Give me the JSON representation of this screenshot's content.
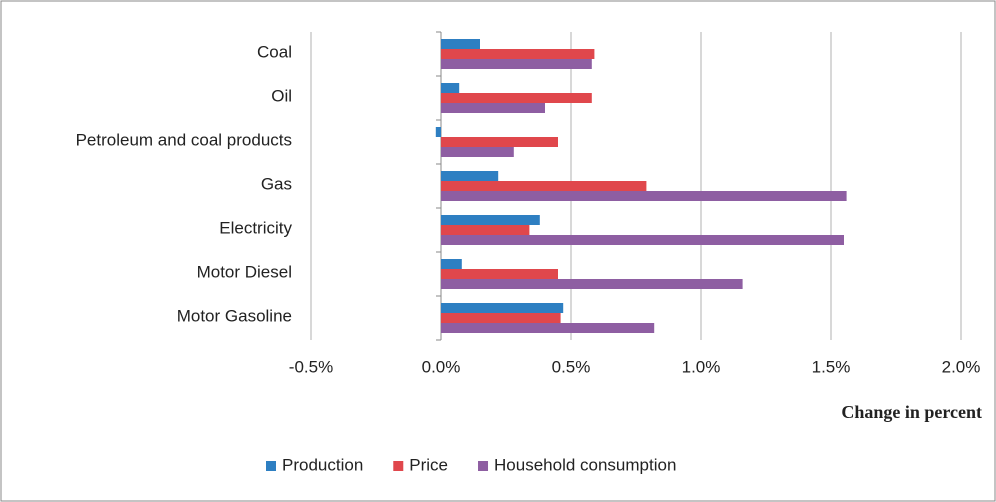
{
  "chart_data": {
    "type": "hbar",
    "categories": [
      "Coal",
      "Oil",
      "Petroleum and coal products",
      "Gas",
      "Electricity",
      "Motor Diesel",
      "Motor Gasoline"
    ],
    "series": [
      {
        "name": "Production",
        "color": "#2e7fc2",
        "values": [
          0.15,
          0.07,
          -0.02,
          0.22,
          0.38,
          0.08,
          0.47
        ]
      },
      {
        "name": "Price",
        "color": "#e0474c",
        "values": [
          0.59,
          0.58,
          0.45,
          0.79,
          0.34,
          0.45,
          0.46
        ]
      },
      {
        "name": "Household consumption",
        "color": "#8e5ea2",
        "values": [
          0.58,
          0.4,
          0.28,
          1.56,
          1.55,
          1.16,
          0.82
        ]
      }
    ],
    "x_label": "Change in percent",
    "xlim": [
      -0.5,
      2.0
    ],
    "xticks": [
      {
        "value": -0.5,
        "label": "-0.5%"
      },
      {
        "value": 0,
        "label": "0.0%"
      },
      {
        "value": 0.5,
        "label": "0.5%"
      },
      {
        "value": 1.0,
        "label": "1.0%"
      },
      {
        "value": 1.5,
        "label": "1.5%"
      },
      {
        "value": 2.0,
        "label": "2.0%"
      }
    ],
    "grid": true,
    "legend": "bottom"
  }
}
